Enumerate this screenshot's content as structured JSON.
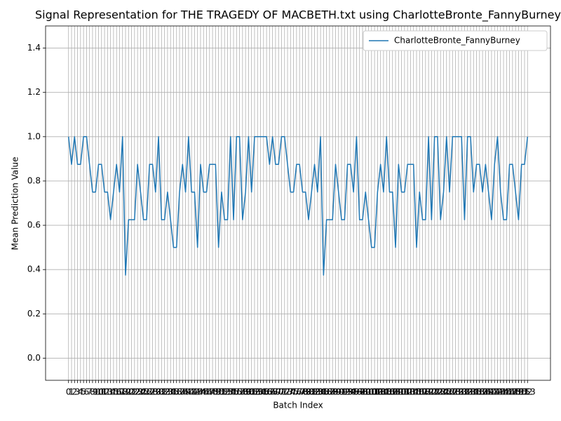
{
  "chart_data": {
    "type": "line",
    "title": "Signal Representation for THE TRAGEDY OF MACBETH.txt using CharlotteBronte_FannyBurney",
    "x_label": "Batch Index",
    "y_label": "Mean Prediction Value",
    "x": [
      0,
      1,
      2,
      3,
      4,
      5,
      6,
      7,
      8,
      9,
      10,
      11,
      12,
      13,
      14,
      15,
      16,
      17,
      18,
      19,
      20,
      21,
      22,
      23,
      24,
      25,
      26,
      27,
      28,
      29,
      30,
      31,
      32,
      33,
      34,
      35,
      36,
      37,
      38,
      39,
      40,
      41,
      42,
      43,
      44,
      45,
      46,
      47,
      48,
      49,
      50,
      51,
      52,
      53,
      54,
      55,
      56,
      57,
      58,
      59,
      60,
      61,
      62,
      63,
      64,
      65,
      66,
      67,
      68,
      69,
      70,
      71,
      72,
      73,
      74,
      75,
      76,
      77,
      78,
      79,
      80,
      81,
      82,
      83,
      84,
      85,
      86,
      87,
      88,
      89,
      90,
      91,
      92,
      93,
      94,
      95,
      96,
      97,
      98,
      99,
      100,
      101,
      102,
      103,
      104,
      105,
      106,
      107,
      108,
      109,
      110,
      111,
      112,
      113,
      114,
      115,
      116,
      117,
      118,
      119,
      120,
      121,
      122,
      123,
      124,
      125,
      126,
      127,
      128,
      129,
      130,
      131,
      132,
      133,
      134,
      135,
      136,
      137,
      138,
      139,
      140,
      141,
      142,
      143,
      144,
      145,
      146,
      147,
      148,
      149,
      150,
      151,
      152,
      153
    ],
    "series": [
      {
        "name": "CharlotteBronte_FannyBurney",
        "color": "#1f77b4",
        "values": [
          1,
          0.875,
          1,
          0.875,
          0.875,
          1,
          1,
          0.875,
          0.75,
          0.75,
          0.875,
          0.875,
          0.75,
          0.75,
          0.625,
          0.75,
          0.875,
          0.75,
          1,
          0.375,
          0.625,
          0.625,
          0.625,
          0.875,
          0.75,
          0.625,
          0.625,
          0.875,
          0.875,
          0.75,
          1,
          0.625,
          0.625,
          0.75,
          0.625,
          0.5,
          0.5,
          0.75,
          0.875,
          0.75,
          1,
          0.75,
          0.75,
          0.5,
          0.875,
          0.75,
          0.75,
          0.875,
          0.875,
          0.875,
          0.5,
          0.75,
          0.625,
          0.625,
          1,
          0.625,
          1,
          1,
          0.625,
          0.75,
          1,
          0.75,
          1,
          1,
          1,
          1,
          1,
          0.875,
          1,
          0.875,
          0.875,
          1,
          1,
          0.875,
          0.75,
          0.75,
          0.875,
          0.875,
          0.75,
          0.75,
          0.625,
          0.75,
          0.875,
          0.75,
          1,
          0.375,
          0.625,
          0.625,
          0.625,
          0.875,
          0.75,
          0.625,
          0.625,
          0.875,
          0.875,
          0.75,
          1,
          0.625,
          0.625,
          0.75,
          0.625,
          0.5,
          0.5,
          0.75,
          0.875,
          0.75,
          1,
          0.75,
          0.75,
          0.5,
          0.875,
          0.75,
          0.75,
          0.875,
          0.875,
          0.875,
          0.5,
          0.75,
          0.625,
          0.625,
          1,
          0.625,
          1,
          1,
          0.625,
          0.75,
          1,
          0.75,
          1,
          1,
          1,
          1,
          0.625,
          1,
          1,
          0.75,
          0.875,
          0.875,
          0.75,
          0.875,
          0.75,
          0.625,
          0.875,
          1,
          0.75,
          0.625,
          0.625,
          0.875,
          0.875,
          0.75,
          0.625,
          0.875,
          0.875,
          1
        ]
      }
    ],
    "xlim": [
      -7.65,
      160.65
    ],
    "xticks": [
      0,
      1,
      2,
      3,
      4,
      5,
      6,
      7,
      8,
      9,
      10,
      11,
      12,
      13,
      14,
      15,
      16,
      17,
      18,
      19,
      20,
      21,
      22,
      23,
      24,
      25,
      26,
      27,
      28,
      29,
      30,
      31,
      32,
      33,
      34,
      35,
      36,
      37,
      38,
      39,
      40,
      41,
      42,
      43,
      44,
      45,
      46,
      47,
      48,
      49,
      50,
      51,
      52,
      53,
      54,
      55,
      56,
      57,
      58,
      59,
      60,
      61,
      62,
      63,
      64,
      65,
      66,
      67,
      68,
      69,
      70,
      71,
      72,
      73,
      74,
      75,
      76,
      77,
      78,
      79,
      80,
      81,
      82,
      83,
      84,
      85,
      86,
      87,
      88,
      89,
      90,
      91,
      92,
      93,
      94,
      95,
      96,
      97,
      98,
      99,
      100,
      101,
      102,
      103,
      104,
      105,
      106,
      107,
      108,
      109,
      110,
      111,
      112,
      113,
      114,
      115,
      116,
      117,
      118,
      119,
      120,
      121,
      122,
      123,
      124,
      125,
      126,
      127,
      128,
      129,
      130,
      131,
      132,
      133,
      134,
      135,
      136,
      137,
      138,
      139,
      140,
      141,
      142,
      143,
      144,
      145,
      146,
      147,
      148,
      149,
      150,
      151,
      152,
      153
    ],
    "ylim": [
      -0.1,
      1.5
    ],
    "yticks": [
      {
        "value": 0,
        "label": "0.0"
      },
      0.2,
      0.4,
      0.6,
      0.8,
      {
        "value": 1,
        "label": "1.0"
      },
      1.2,
      1.4
    ],
    "grid": true,
    "legend": "upper right"
  }
}
